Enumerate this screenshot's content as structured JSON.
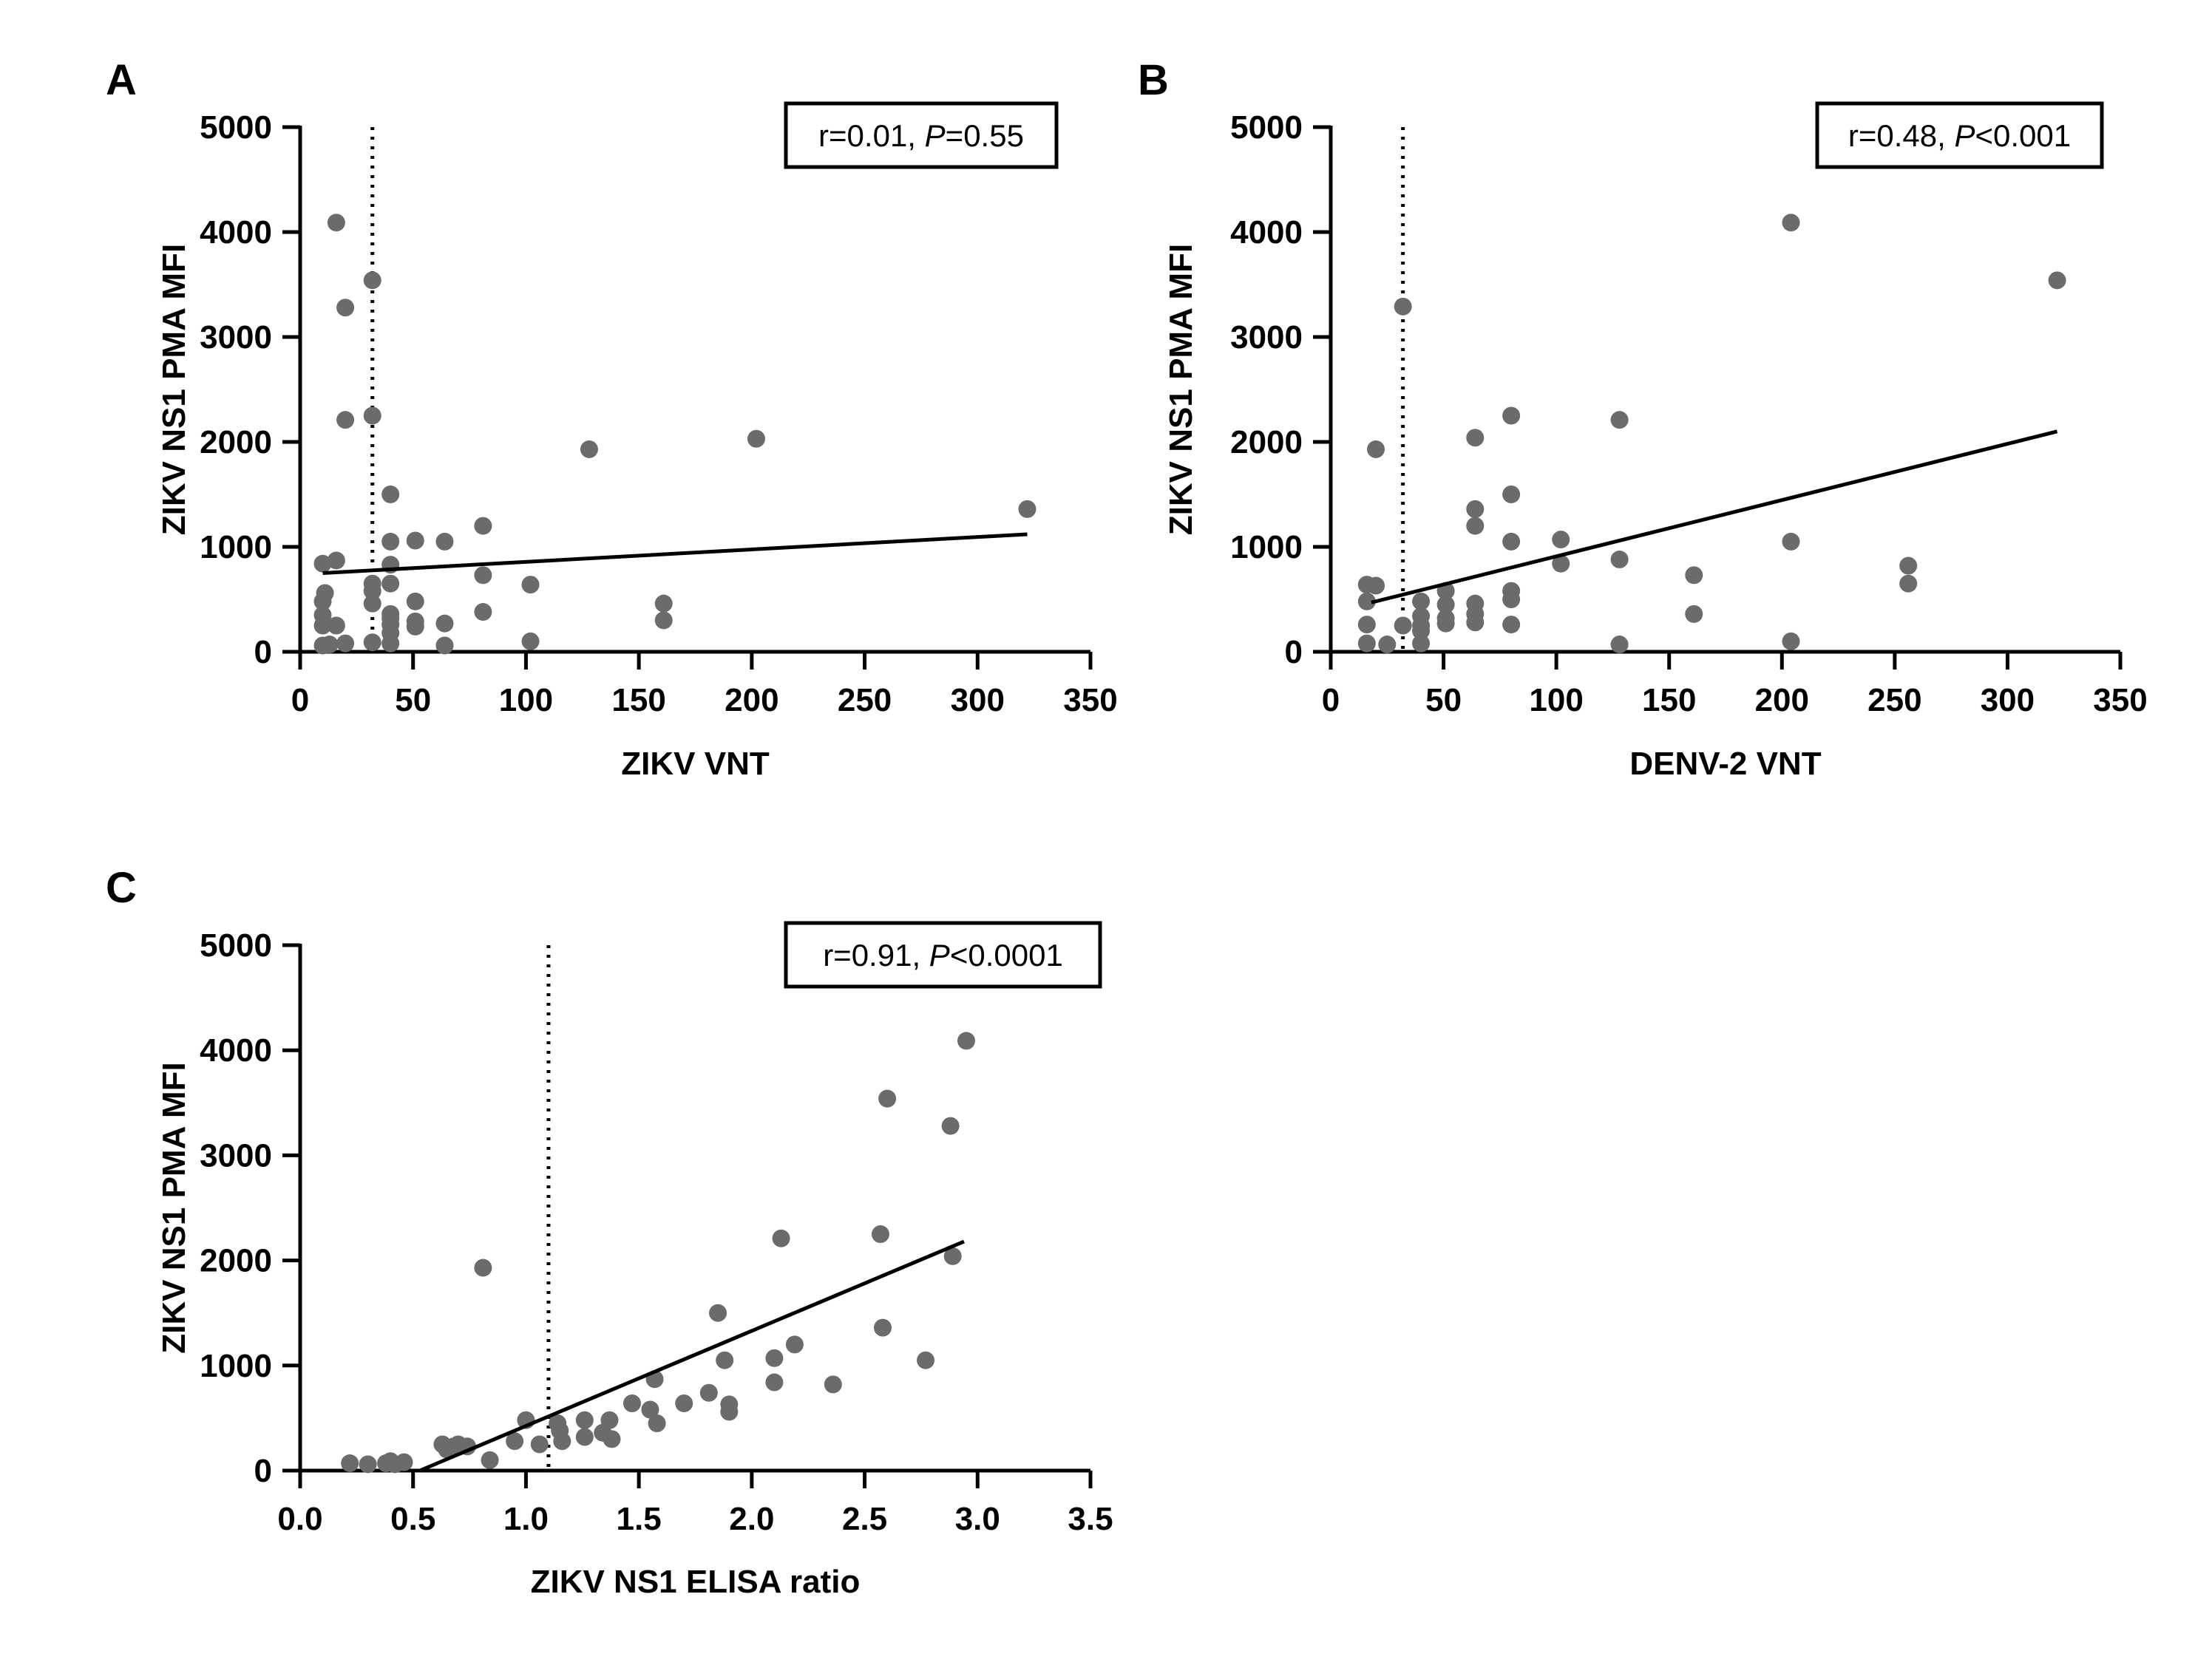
{
  "colors": {
    "point": "#6b6b6b",
    "line": "#000000"
  },
  "chart_data": [
    {
      "panel": "A",
      "type": "scatter",
      "xlabel": "ZIKV VNT",
      "ylabel": "ZIKV NS1 PMA MFI",
      "stat": {
        "r_text": "r=0.01, ",
        "p_symbol": "P",
        "p_text": "=0.55"
      },
      "xlim": [
        0,
        350
      ],
      "ylim": [
        0,
        5000
      ],
      "xticks": [
        0,
        50,
        100,
        150,
        200,
        250,
        300,
        350
      ],
      "yticks": [
        0,
        1000,
        2000,
        3000,
        4000,
        5000
      ],
      "cutoff_x": 32,
      "fit": {
        "x": [
          10,
          322
        ],
        "y": [
          750,
          1120
        ]
      },
      "points": [
        [
          16,
          4090
        ],
        [
          20,
          3280
        ],
        [
          32,
          3540
        ],
        [
          20,
          2210
        ],
        [
          32,
          2250
        ],
        [
          128,
          1930
        ],
        [
          202,
          2030
        ],
        [
          322,
          1360
        ],
        [
          10,
          840
        ],
        [
          16,
          870
        ],
        [
          10,
          480
        ],
        [
          10,
          350
        ],
        [
          10,
          250
        ],
        [
          11,
          560
        ],
        [
          16,
          250
        ],
        [
          10,
          60
        ],
        [
          13,
          70
        ],
        [
          20,
          80
        ],
        [
          32,
          650
        ],
        [
          32,
          580
        ],
        [
          32,
          460
        ],
        [
          32,
          90
        ],
        [
          40,
          1500
        ],
        [
          40,
          1050
        ],
        [
          40,
          830
        ],
        [
          40,
          650
        ],
        [
          40,
          360
        ],
        [
          40,
          320
        ],
        [
          40,
          260
        ],
        [
          40,
          180
        ],
        [
          40,
          80
        ],
        [
          51,
          1060
        ],
        [
          51,
          480
        ],
        [
          51,
          290
        ],
        [
          51,
          240
        ],
        [
          64,
          1050
        ],
        [
          64,
          270
        ],
        [
          64,
          60
        ],
        [
          81,
          1200
        ],
        [
          81,
          730
        ],
        [
          81,
          380
        ],
        [
          102,
          640
        ],
        [
          102,
          100
        ],
        [
          161,
          460
        ],
        [
          161,
          300
        ]
      ]
    },
    {
      "panel": "B",
      "type": "scatter",
      "xlabel": "DENV-2 VNT",
      "ylabel": "ZIKV NS1 PMA MFI",
      "stat": {
        "r_text": "r=0.48, ",
        "p_symbol": "P",
        "p_text": "<0.001"
      },
      "xlim": [
        0,
        350
      ],
      "ylim": [
        0,
        5000
      ],
      "xticks": [
        0,
        50,
        100,
        150,
        200,
        250,
        300,
        350
      ],
      "yticks": [
        0,
        1000,
        2000,
        3000,
        4000,
        5000
      ],
      "cutoff_x": 32,
      "fit": {
        "x": [
          18,
          322
        ],
        "y": [
          470,
          2100
        ]
      },
      "points": [
        [
          16,
          640
        ],
        [
          20,
          630
        ],
        [
          16,
          480
        ],
        [
          16,
          260
        ],
        [
          16,
          80
        ],
        [
          20,
          1930
        ],
        [
          25,
          70
        ],
        [
          32,
          3290
        ],
        [
          32,
          250
        ],
        [
          40,
          480
        ],
        [
          40,
          340
        ],
        [
          40,
          250
        ],
        [
          40,
          200
        ],
        [
          40,
          80
        ],
        [
          51,
          580
        ],
        [
          51,
          450
        ],
        [
          51,
          320
        ],
        [
          51,
          270
        ],
        [
          64,
          2040
        ],
        [
          64,
          1360
        ],
        [
          64,
          1200
        ],
        [
          64,
          460
        ],
        [
          64,
          360
        ],
        [
          64,
          280
        ],
        [
          80,
          2250
        ],
        [
          80,
          1500
        ],
        [
          80,
          1050
        ],
        [
          80,
          580
        ],
        [
          80,
          500
        ],
        [
          80,
          260
        ],
        [
          102,
          1070
        ],
        [
          102,
          840
        ],
        [
          128,
          2210
        ],
        [
          128,
          880
        ],
        [
          128,
          70
        ],
        [
          161,
          730
        ],
        [
          161,
          360
        ],
        [
          204,
          4090
        ],
        [
          204,
          1050
        ],
        [
          204,
          100
        ],
        [
          256,
          820
        ],
        [
          256,
          650
        ],
        [
          322,
          3540
        ]
      ]
    },
    {
      "panel": "C",
      "type": "scatter",
      "xlabel": "ZIKV NS1 ELISA ratio",
      "ylabel": "ZIKV NS1 PMA MFI",
      "stat": {
        "r_text": "r=0.91, ",
        "p_symbol": "P",
        "p_text": "<0.0001"
      },
      "xlim": [
        0,
        3.5
      ],
      "ylim": [
        0,
        5000
      ],
      "xticks": [
        "0.0",
        "0.5",
        "1.0",
        "1.5",
        "2.0",
        "2.5",
        "3.0",
        "3.5"
      ],
      "yticks": [
        0,
        1000,
        2000,
        3000,
        4000,
        5000
      ],
      "cutoff_x": 1.1,
      "fit": {
        "x": [
          0.53,
          2.94
        ],
        "y": [
          0,
          2180
        ]
      },
      "points": [
        [
          0.22,
          70
        ],
        [
          0.3,
          60
        ],
        [
          0.38,
          70
        ],
        [
          0.4,
          90
        ],
        [
          0.42,
          60
        ],
        [
          0.46,
          80
        ],
        [
          0.63,
          250
        ],
        [
          0.65,
          200
        ],
        [
          0.68,
          230
        ],
        [
          0.7,
          250
        ],
        [
          0.74,
          230
        ],
        [
          0.81,
          1930
        ],
        [
          0.84,
          100
        ],
        [
          0.95,
          280
        ],
        [
          1.0,
          480
        ],
        [
          1.06,
          250
        ],
        [
          1.14,
          450
        ],
        [
          1.15,
          380
        ],
        [
          1.16,
          280
        ],
        [
          1.26,
          480
        ],
        [
          1.26,
          320
        ],
        [
          1.34,
          360
        ],
        [
          1.37,
          480
        ],
        [
          1.38,
          300
        ],
        [
          1.47,
          640
        ],
        [
          1.55,
          580
        ],
        [
          1.57,
          870
        ],
        [
          1.58,
          450
        ],
        [
          1.7,
          640
        ],
        [
          1.81,
          740
        ],
        [
          1.85,
          1500
        ],
        [
          1.88,
          1050
        ],
        [
          1.9,
          630
        ],
        [
          1.9,
          560
        ],
        [
          2.1,
          1070
        ],
        [
          2.1,
          840
        ],
        [
          2.13,
          2210
        ],
        [
          2.19,
          1200
        ],
        [
          2.36,
          820
        ],
        [
          2.57,
          2250
        ],
        [
          2.58,
          1360
        ],
        [
          2.6,
          3540
        ],
        [
          2.77,
          1050
        ],
        [
          2.88,
          3280
        ],
        [
          2.89,
          2040
        ],
        [
          2.95,
          4090
        ]
      ]
    }
  ]
}
